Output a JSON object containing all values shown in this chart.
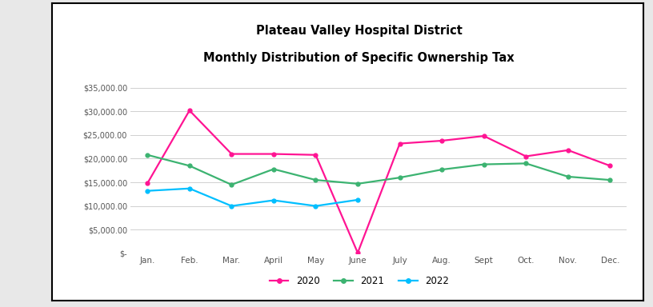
{
  "title_line1": "Plateau Valley Hospital District",
  "title_line2": "Monthly Distribution of Specific Ownership Tax",
  "months": [
    "Jan.",
    "Feb.",
    "Mar.",
    "April",
    "May",
    "June",
    "July",
    "Aug.",
    "Sept",
    "Oct.",
    "Nov.",
    "Dec."
  ],
  "series": {
    "2020": [
      14800,
      30200,
      21000,
      21000,
      20800,
      100,
      23200,
      23800,
      24800,
      20500,
      21800,
      18500
    ],
    "2021": [
      20800,
      18500,
      14500,
      17800,
      15500,
      14700,
      16000,
      17700,
      18800,
      19000,
      16200,
      15500
    ],
    "2022": [
      13200,
      13700,
      10000,
      11200,
      10000,
      11300,
      null,
      null,
      null,
      null,
      null,
      null
    ]
  },
  "colors": {
    "2020": "#FF1493",
    "2021": "#3CB371",
    "2022": "#00BFFF"
  },
  "ylim": [
    0,
    37000
  ],
  "yticks": [
    0,
    5000,
    10000,
    15000,
    20000,
    25000,
    30000,
    35000
  ],
  "ytick_labels": [
    "$-",
    "$5,000.00",
    "$10,000.00",
    "$15,000.00",
    "$20,000.00",
    "$25,000.00",
    "$30,000.00",
    "$35,000.00"
  ],
  "background_color": "#ffffff",
  "plot_bg_color": "#ffffff",
  "grid_color": "#d0d0d0",
  "legend_labels": [
    "2020",
    "2021",
    "2022"
  ],
  "figure_border_color": "#000000",
  "outer_bg": "#e8e8e8"
}
